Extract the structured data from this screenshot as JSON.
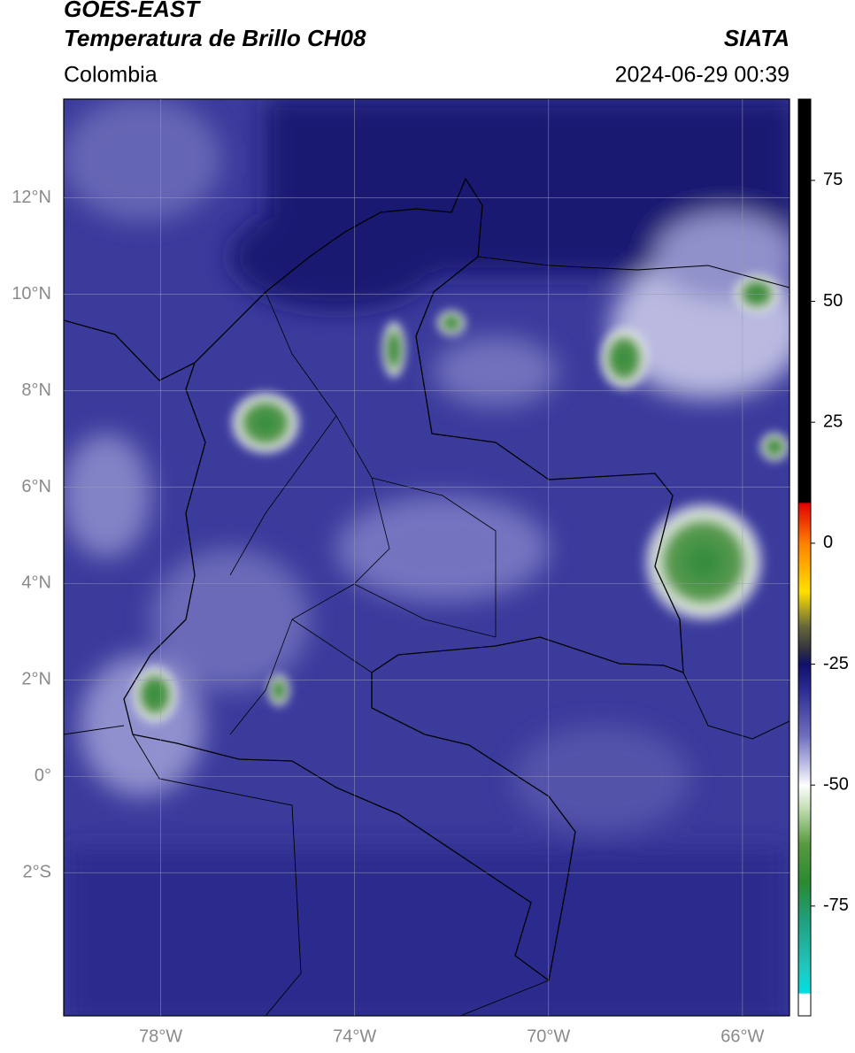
{
  "chart_data": {
    "type": "map",
    "title": "GOES-EAST",
    "subtitle": "Temperatura de Brillo CH08",
    "source": "SIATA",
    "region": "Colombia",
    "timestamp": "2024-06-29 00:39",
    "xlim": [
      -80,
      -65.03
    ],
    "ylim": [
      -4.97,
      14.05
    ],
    "xticks": [
      {
        "value": -78,
        "label": "78°W"
      },
      {
        "value": -74,
        "label": "74°W"
      },
      {
        "value": -70,
        "label": "70°W"
      },
      {
        "value": -66,
        "label": "66°W"
      }
    ],
    "yticks": [
      {
        "value": 12,
        "label": "12°N"
      },
      {
        "value": 10,
        "label": "10°N"
      },
      {
        "value": 8,
        "label": "8°N"
      },
      {
        "value": 6,
        "label": "6°N"
      },
      {
        "value": 4,
        "label": "4°N"
      },
      {
        "value": 2,
        "label": "2°N"
      },
      {
        "value": 0,
        "label": "0°"
      },
      {
        "value": -2,
        "label": "2°S"
      }
    ],
    "grid": true,
    "colorbar": {
      "lim": [
        -97.7,
        91.8
      ],
      "ticks": [
        75,
        50,
        25,
        0,
        -25,
        -50,
        -75
      ],
      "stops": [
        {
          "value": 91.8,
          "color": "#000000"
        },
        {
          "value": 8.4,
          "color": "#000000"
        },
        {
          "value": 8.3,
          "color": "#e00000"
        },
        {
          "value": 0,
          "color": "#ff8000"
        },
        {
          "value": -10,
          "color": "#ffe000"
        },
        {
          "value": -17,
          "color": "#6a6a3a"
        },
        {
          "value": -22,
          "color": "#303040"
        },
        {
          "value": -25,
          "color": "#10106a"
        },
        {
          "value": -30,
          "color": "#2a2a90"
        },
        {
          "value": -40,
          "color": "#7070c0"
        },
        {
          "value": -47,
          "color": "#d0d0ec"
        },
        {
          "value": -50,
          "color": "#ffffff"
        },
        {
          "value": -55,
          "color": "#c0dcb0"
        },
        {
          "value": -62,
          "color": "#5a9a40"
        },
        {
          "value": -70,
          "color": "#2a8a30"
        },
        {
          "value": -78,
          "color": "#20a080"
        },
        {
          "value": -88,
          "color": "#20c8c0"
        },
        {
          "value": -93,
          "color": "#00e0e0"
        },
        {
          "value": -93.1,
          "color": "#ffffff"
        },
        {
          "value": -97.7,
          "color": "#ffffff"
        }
      ]
    }
  }
}
